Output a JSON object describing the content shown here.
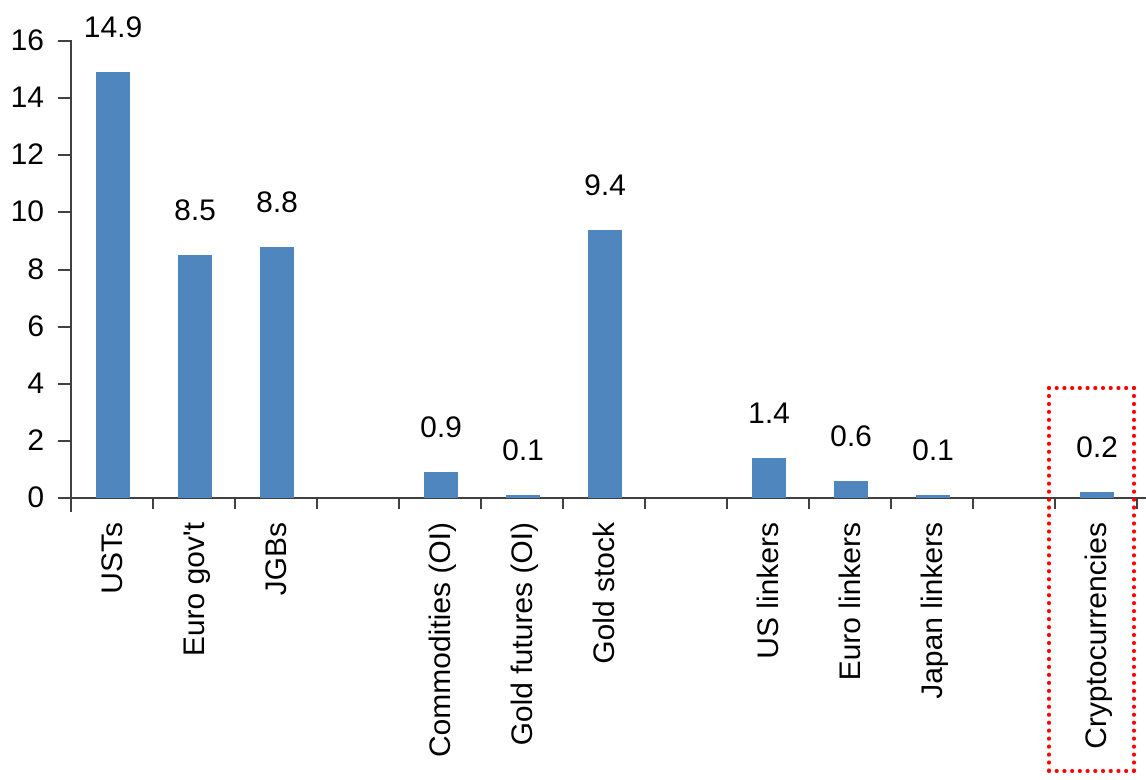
{
  "chart_data": {
    "type": "bar",
    "title": "",
    "xlabel": "",
    "ylabel": "",
    "categories": [
      "USTs",
      "Euro gov't",
      "JGBs",
      "Commodities (OI)",
      "Gold futures (OI)",
      "Gold stock",
      "US linkers",
      "Euro linkers",
      "Japan linkers",
      "Cryptocurrencies"
    ],
    "values": [
      14.9,
      8.5,
      8.8,
      0.9,
      0.1,
      9.4,
      1.4,
      0.6,
      0.1,
      0.2
    ],
    "value_labels": [
      "14.9",
      "8.5",
      "8.8",
      "0.9",
      "0.1",
      "9.4",
      "1.4",
      "0.6",
      "0.1",
      "0.2"
    ],
    "ylim": [
      0,
      16
    ],
    "y_ticks": [
      0,
      2,
      4,
      6,
      8,
      10,
      12,
      14,
      16
    ],
    "grid": false,
    "legend": false,
    "gaps_after": [
      "JGBs",
      "Gold stock",
      "Japan linkers"
    ],
    "highlight": {
      "category": "Cryptocurrencies",
      "style": "dotted-outline",
      "color": "#FF0000"
    },
    "colors": {
      "bar": "#4E86BD",
      "axis": "#404040",
      "text": "#000000"
    }
  }
}
